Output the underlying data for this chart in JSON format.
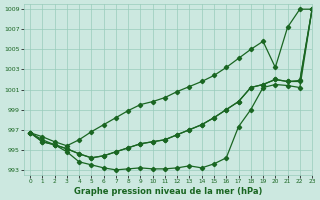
{
  "title": "Graphe pression niveau de la mer (hPa)",
  "bg_color": "#cce8e0",
  "grid_color": "#99ccbb",
  "line_color": "#1a6622",
  "xlim": [
    -0.5,
    23
  ],
  "ylim": [
    992.5,
    1009.5
  ],
  "yticks": [
    993,
    995,
    997,
    999,
    1001,
    1003,
    1005,
    1007,
    1009
  ],
  "xticks": [
    0,
    1,
    2,
    3,
    4,
    5,
    6,
    7,
    8,
    9,
    10,
    11,
    12,
    13,
    14,
    15,
    16,
    17,
    18,
    19,
    20,
    21,
    22,
    23
  ],
  "line_top": [
    996.7,
    996.3,
    995.8,
    995.4,
    996.0,
    996.8,
    997.5,
    998.2,
    998.9,
    999.5,
    999.8,
    1000.2,
    1000.8,
    1001.3,
    1001.8,
    1002.4,
    1003.2,
    1004.1,
    1005.0,
    1005.8,
    1003.2,
    1007.2,
    1009.0,
    1009.0
  ],
  "line_mid1": [
    996.7,
    995.8,
    995.5,
    995.1,
    994.6,
    994.2,
    994.4,
    994.8,
    995.2,
    995.6,
    995.8,
    996.0,
    996.5,
    997.0,
    997.5,
    998.2,
    999.0,
    999.8,
    1001.2,
    1001.5,
    1002.0,
    1001.8,
    1001.9,
    1009.0
  ],
  "line_mid2": [
    996.7,
    995.8,
    995.5,
    995.1,
    994.6,
    994.2,
    994.4,
    994.8,
    995.2,
    995.6,
    995.8,
    996.0,
    996.5,
    997.0,
    997.5,
    998.2,
    999.0,
    999.8,
    1001.2,
    1001.5,
    1002.0,
    1001.8,
    1001.8,
    1009.0
  ],
  "line_low": [
    996.7,
    996.0,
    995.5,
    994.8,
    993.8,
    993.5,
    993.2,
    993.0,
    993.1,
    993.2,
    993.1,
    993.1,
    993.2,
    993.4,
    993.2,
    993.6,
    994.2,
    997.3,
    999.0,
    1001.2,
    1001.5,
    1001.4,
    1001.2,
    1009.0
  ]
}
